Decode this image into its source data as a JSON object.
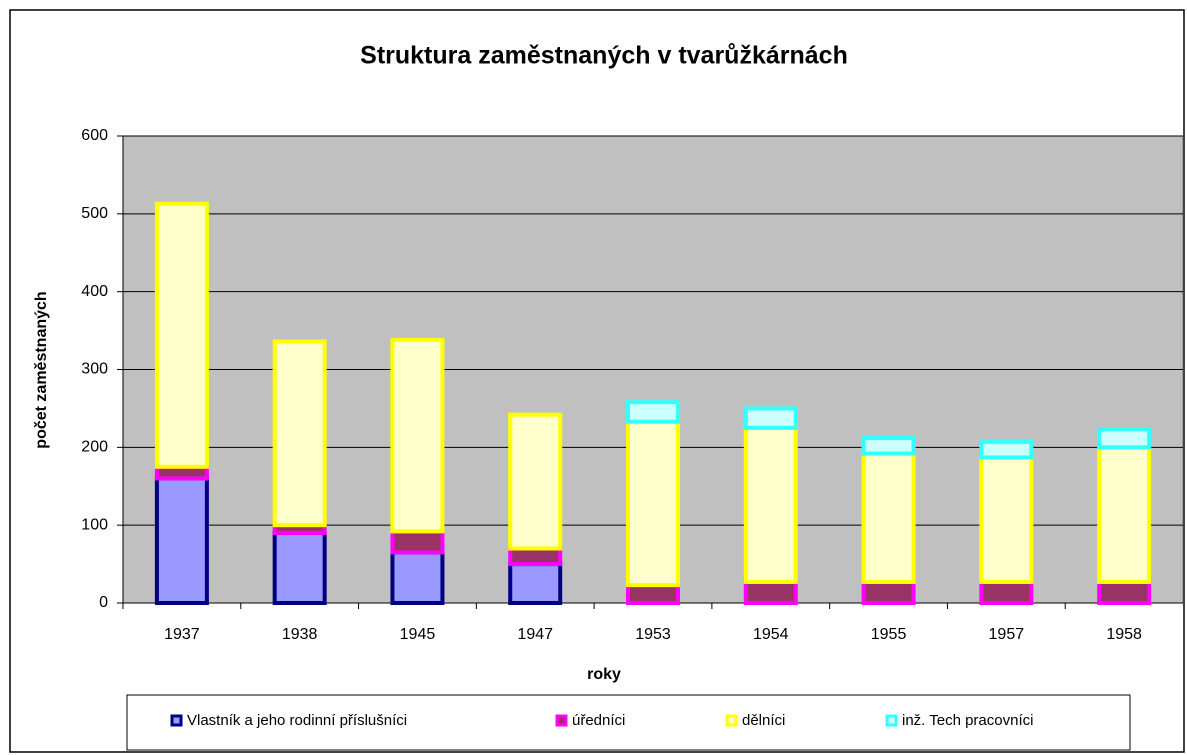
{
  "chart_data": {
    "type": "stacked_bar",
    "title": "Struktura zaměstnaných v tvarůžkárnách",
    "xlabel": "roky",
    "ylabel": "počet zaměstnaných",
    "categories": [
      "1937",
      "1938",
      "1945",
      "1947",
      "1953",
      "1954",
      "1955",
      "1957",
      "1958"
    ],
    "series": [
      {
        "name": "Vlastník a jeho rodinní příslušníci",
        "color": "#9999ff",
        "border": "#000080",
        "values": [
          160,
          90,
          65,
          50,
          0,
          0,
          0,
          0,
          0
        ]
      },
      {
        "name": "úředníci",
        "color": "#993366",
        "border": "#ff00ff",
        "values": [
          15,
          10,
          27,
          20,
          23,
          27,
          27,
          27,
          27
        ]
      },
      {
        "name": "dělníci",
        "color": "#ffffcc",
        "border": "#ffff00",
        "values": [
          338,
          236,
          246,
          172,
          210,
          198,
          165,
          160,
          173
        ]
      },
      {
        "name": "inž. Tech pracovníci",
        "color": "#ccffff",
        "border": "#33ffff",
        "values": [
          0,
          0,
          0,
          0,
          25,
          25,
          20,
          20,
          23
        ]
      }
    ],
    "ylim": [
      0,
      600
    ],
    "yticks": [
      0,
      100,
      200,
      300,
      400,
      500,
      600
    ],
    "grid": true,
    "legend": "bottom"
  }
}
